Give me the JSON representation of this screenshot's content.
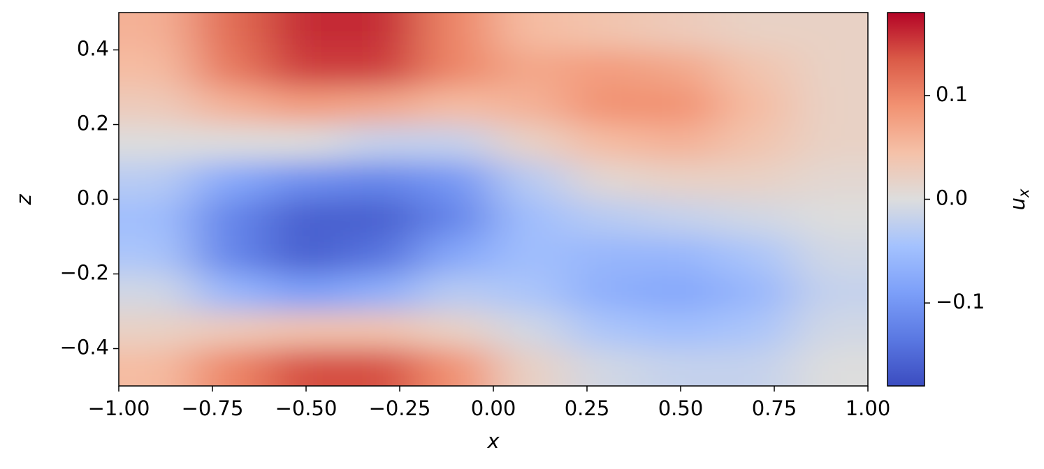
{
  "chart_data": {
    "type": "heatmap",
    "xlabel": "x",
    "ylabel": "z",
    "colorbar_label": {
      "base": "u",
      "sub": "x"
    },
    "colormap": "coolwarm",
    "clim": [
      -0.18,
      0.18
    ],
    "xlim": [
      -1,
      1
    ],
    "ylim": [
      -0.5,
      0.5
    ],
    "xticks": [
      {
        "value": -1,
        "label": "−1.00"
      },
      {
        "value": -0.75,
        "label": "−0.75"
      },
      {
        "value": -0.5,
        "label": "−0.50"
      },
      {
        "value": -0.25,
        "label": "−0.25"
      },
      {
        "value": 0,
        "label": "0.00"
      },
      0.25,
      {
        "value": 0.5,
        "label": "0.50"
      },
      0.75,
      {
        "value": 1,
        "label": "1.00"
      }
    ],
    "yticks": [
      {
        "value": -0.4,
        "label": "−0.4"
      },
      {
        "value": -0.2,
        "label": "−0.2"
      },
      {
        "value": 0,
        "label": "0.0"
      },
      0.2,
      0.4
    ],
    "cticks": [
      {
        "value": -0.1,
        "label": "−0.1"
      },
      {
        "value": 0,
        "label": "0.0"
      },
      0.1
    ],
    "x": [
      -0.9,
      -0.7,
      -0.5,
      -0.3,
      -0.1,
      0.1,
      0.3,
      0.5,
      0.7,
      0.9
    ],
    "z": [
      0.45,
      0.35,
      0.25,
      0.15,
      0.05,
      -0.05,
      -0.15,
      -0.25,
      -0.35,
      -0.45
    ],
    "values": [
      [
        0.06,
        0.12,
        0.16,
        0.16,
        0.1,
        0.05,
        0.04,
        0.03,
        0.02,
        0.02
      ],
      [
        0.05,
        0.11,
        0.15,
        0.15,
        0.1,
        0.07,
        0.08,
        0.07,
        0.04,
        0.02
      ],
      [
        0.03,
        0.06,
        0.08,
        0.07,
        0.05,
        0.06,
        0.09,
        0.09,
        0.05,
        0.02
      ],
      [
        0.0,
        0.0,
        0.0,
        -0.02,
        -0.02,
        0.02,
        0.05,
        0.06,
        0.04,
        0.02
      ],
      [
        -0.03,
        -0.08,
        -0.11,
        -0.12,
        -0.1,
        -0.03,
        0.01,
        0.02,
        0.02,
        0.01
      ],
      [
        -0.05,
        -0.12,
        -0.16,
        -0.16,
        -0.12,
        -0.05,
        -0.03,
        -0.02,
        -0.01,
        0.0
      ],
      [
        -0.04,
        -0.12,
        -0.16,
        -0.14,
        -0.08,
        -0.05,
        -0.06,
        -0.06,
        -0.04,
        -0.01
      ],
      [
        -0.01,
        -0.06,
        -0.09,
        -0.07,
        -0.03,
        -0.04,
        -0.07,
        -0.08,
        -0.06,
        -0.02
      ],
      [
        0.02,
        0.03,
        0.04,
        0.04,
        0.02,
        -0.01,
        -0.04,
        -0.05,
        -0.04,
        -0.01
      ],
      [
        0.05,
        0.1,
        0.14,
        0.14,
        0.09,
        0.02,
        -0.01,
        -0.02,
        -0.02,
        0.0
      ]
    ]
  }
}
